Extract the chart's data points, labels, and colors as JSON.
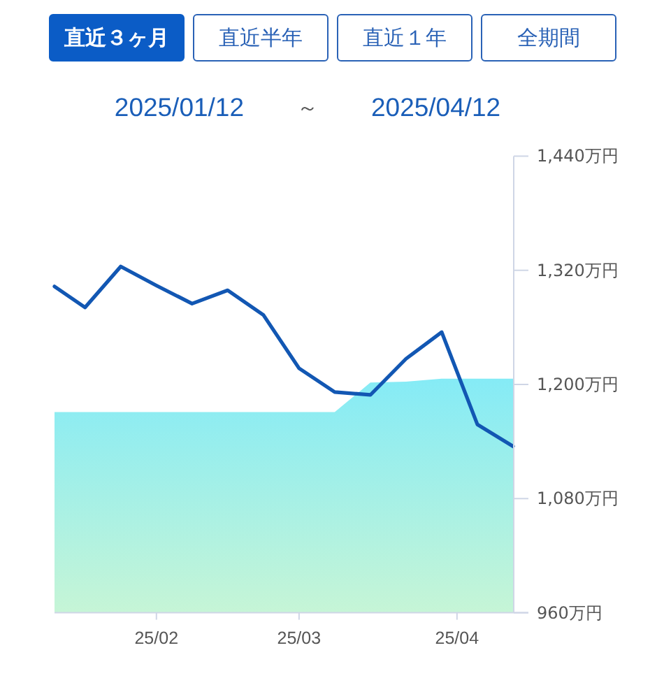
{
  "chart_data": {
    "type": "line",
    "annotations": [
      "直近３ヶ月",
      "直近半年",
      "直近１年",
      "全期間"
    ],
    "subtitle": "2025/01/12 ～ 2025/04/12",
    "x": [
      "2025-01-12",
      "2025-01-18",
      "2025-01-25",
      "2025-02-01",
      "2025-02-08",
      "2025-02-15",
      "2025-02-22",
      "2025-03-01",
      "2025-03-08",
      "2025-03-15",
      "2025-03-22",
      "2025-03-29",
      "2025-04-05",
      "2025-04-12"
    ],
    "series": [
      {
        "type": "area",
        "color": "#85ebf6",
        "values": [
          1171,
          1171,
          1171,
          1171,
          1171,
          1171,
          1171,
          1171,
          1171,
          1202,
          1203,
          1206,
          1206,
          1206
        ]
      },
      {
        "color": "#1257b3",
        "values": [
          1303,
          1281,
          1324,
          1304,
          1285,
          1299,
          1273,
          1217,
          1192,
          1189,
          1227,
          1255,
          1158,
          1135
        ]
      }
    ],
    "xlim": [
      "2025-01-12",
      "2025-04-12"
    ],
    "xticks": [
      {
        "value": "2025-02-01",
        "label": "25/02"
      },
      {
        "value": "2025-03-01",
        "label": "25/03"
      },
      {
        "value": "2025-04-01",
        "label": "25/04"
      }
    ],
    "ylim": [
      960,
      1440
    ],
    "yticks": [
      {
        "value": 960,
        "label": "960万円"
      },
      {
        "value": 1080,
        "label": "1,080万円"
      },
      {
        "value": 1200,
        "label": "1,200万円"
      },
      {
        "value": 1320,
        "label": "1,320万円"
      },
      {
        "value": 1440,
        "label": "1,440万円"
      }
    ]
  }
}
